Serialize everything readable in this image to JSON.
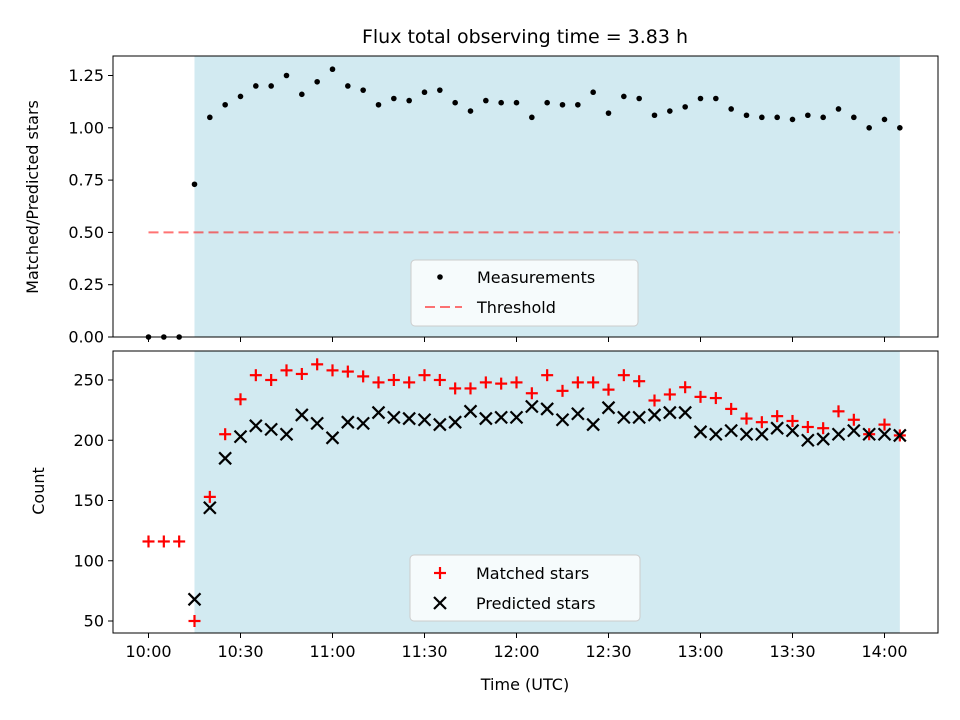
{
  "chart_data": [
    {
      "type": "scatter",
      "title": "Flux total observing time = 3.83 h",
      "xlabel": "",
      "ylabel": "Matched/Predicted stars",
      "ylim": [
        0,
        1.35
      ],
      "yticks": [
        "0.00",
        "0.25",
        "0.50",
        "0.75",
        "1.00",
        "1.25"
      ],
      "shaded_interval": [
        "10:15",
        "14:05"
      ],
      "shade_color": "#add8e6",
      "threshold": {
        "value": 0.5,
        "label": "Threshold",
        "color": "#ff0000"
      },
      "legend": {
        "placement": "lower-center",
        "entries": [
          "Measurements",
          "Threshold"
        ]
      },
      "series": [
        {
          "name": "Measurements",
          "color": "#000000",
          "marker": "dot",
          "x": [
            "10:00",
            "10:05",
            "10:10",
            "10:15",
            "10:20",
            "10:25",
            "10:30",
            "10:35",
            "10:40",
            "10:45",
            "10:50",
            "10:55",
            "11:00",
            "11:05",
            "11:10",
            "11:15",
            "11:20",
            "11:25",
            "11:30",
            "11:35",
            "11:40",
            "11:45",
            "11:50",
            "11:55",
            "12:00",
            "12:05",
            "12:10",
            "12:15",
            "12:20",
            "12:25",
            "12:30",
            "12:35",
            "12:40",
            "12:45",
            "12:50",
            "12:55",
            "13:00",
            "13:05",
            "13:10",
            "13:15",
            "13:20",
            "13:25",
            "13:30",
            "13:35",
            "13:40",
            "13:45",
            "13:50",
            "13:55",
            "14:00",
            "14:05"
          ],
          "y": [
            0.0,
            0.0,
            0.0,
            0.73,
            1.05,
            1.11,
            1.15,
            1.2,
            1.2,
            1.25,
            1.16,
            1.22,
            1.28,
            1.2,
            1.18,
            1.11,
            1.14,
            1.13,
            1.17,
            1.18,
            1.12,
            1.08,
            1.13,
            1.12,
            1.12,
            1.05,
            1.12,
            1.11,
            1.11,
            1.17,
            1.07,
            1.15,
            1.14,
            1.06,
            1.08,
            1.1,
            1.14,
            1.14,
            1.09,
            1.06,
            1.05,
            1.05,
            1.04,
            1.06,
            1.05,
            1.09,
            1.05,
            1.0,
            1.04,
            1.0
          ]
        }
      ]
    },
    {
      "type": "scatter",
      "title": "",
      "xlabel": "Time (UTC)",
      "ylabel": "Count",
      "ylim": [
        40,
        265
      ],
      "yticks": [
        "50",
        "100",
        "150",
        "200",
        "250"
      ],
      "xticks": [
        "10:00",
        "10:30",
        "11:00",
        "11:30",
        "12:00",
        "12:30",
        "13:00",
        "13:30",
        "14:00"
      ],
      "shaded_interval": [
        "10:15",
        "14:05"
      ],
      "shade_color": "#add8e6",
      "legend": {
        "placement": "lower-center",
        "entries": [
          "Matched stars",
          "Predicted stars"
        ]
      },
      "series": [
        {
          "name": "Matched stars",
          "color": "#ff0000",
          "marker": "plus",
          "x": [
            "10:00",
            "10:05",
            "10:10",
            "10:15",
            "10:20",
            "10:25",
            "10:30",
            "10:35",
            "10:40",
            "10:45",
            "10:50",
            "10:55",
            "11:00",
            "11:05",
            "11:10",
            "11:15",
            "11:20",
            "11:25",
            "11:30",
            "11:35",
            "11:40",
            "11:45",
            "11:50",
            "11:55",
            "12:00",
            "12:05",
            "12:10",
            "12:15",
            "12:20",
            "12:25",
            "12:30",
            "12:35",
            "12:40",
            "12:45",
            "12:50",
            "12:55",
            "13:00",
            "13:05",
            "13:10",
            "13:15",
            "13:20",
            "13:25",
            "13:30",
            "13:35",
            "13:40",
            "13:45",
            "13:50",
            "13:55",
            "14:00",
            "14:05"
          ],
          "y": [
            116,
            116,
            116,
            50,
            153,
            205,
            234,
            254,
            250,
            258,
            255,
            263,
            258,
            257,
            253,
            248,
            250,
            248,
            254,
            250,
            243,
            243,
            248,
            247,
            248,
            239,
            254,
            241,
            248,
            248,
            242,
            254,
            249,
            233,
            238,
            244,
            236,
            235,
            226,
            218,
            215,
            220,
            216,
            211,
            210,
            224,
            217,
            205,
            213,
            204
          ]
        },
        {
          "name": "Predicted stars",
          "color": "#000000",
          "marker": "x",
          "x": [
            "10:15",
            "10:20",
            "10:25",
            "10:30",
            "10:35",
            "10:40",
            "10:45",
            "10:50",
            "10:55",
            "11:00",
            "11:05",
            "11:10",
            "11:15",
            "11:20",
            "11:25",
            "11:30",
            "11:35",
            "11:40",
            "11:45",
            "11:50",
            "11:55",
            "12:00",
            "12:05",
            "12:10",
            "12:15",
            "12:20",
            "12:25",
            "12:30",
            "12:35",
            "12:40",
            "12:45",
            "12:50",
            "12:55",
            "13:00",
            "13:05",
            "13:10",
            "13:15",
            "13:20",
            "13:25",
            "13:30",
            "13:35",
            "13:40",
            "13:45",
            "13:50",
            "13:55",
            "14:00",
            "14:05"
          ],
          "y": [
            68,
            144,
            185,
            203,
            212,
            209,
            205,
            221,
            214,
            202,
            215,
            214,
            223,
            219,
            218,
            217,
            213,
            215,
            224,
            218,
            219,
            219,
            228,
            226,
            217,
            222,
            213,
            227,
            219,
            219,
            221,
            223,
            223,
            207,
            205,
            208,
            205,
            205,
            210,
            208,
            200,
            201,
            205,
            208,
            205,
            205,
            204
          ]
        }
      ]
    }
  ]
}
